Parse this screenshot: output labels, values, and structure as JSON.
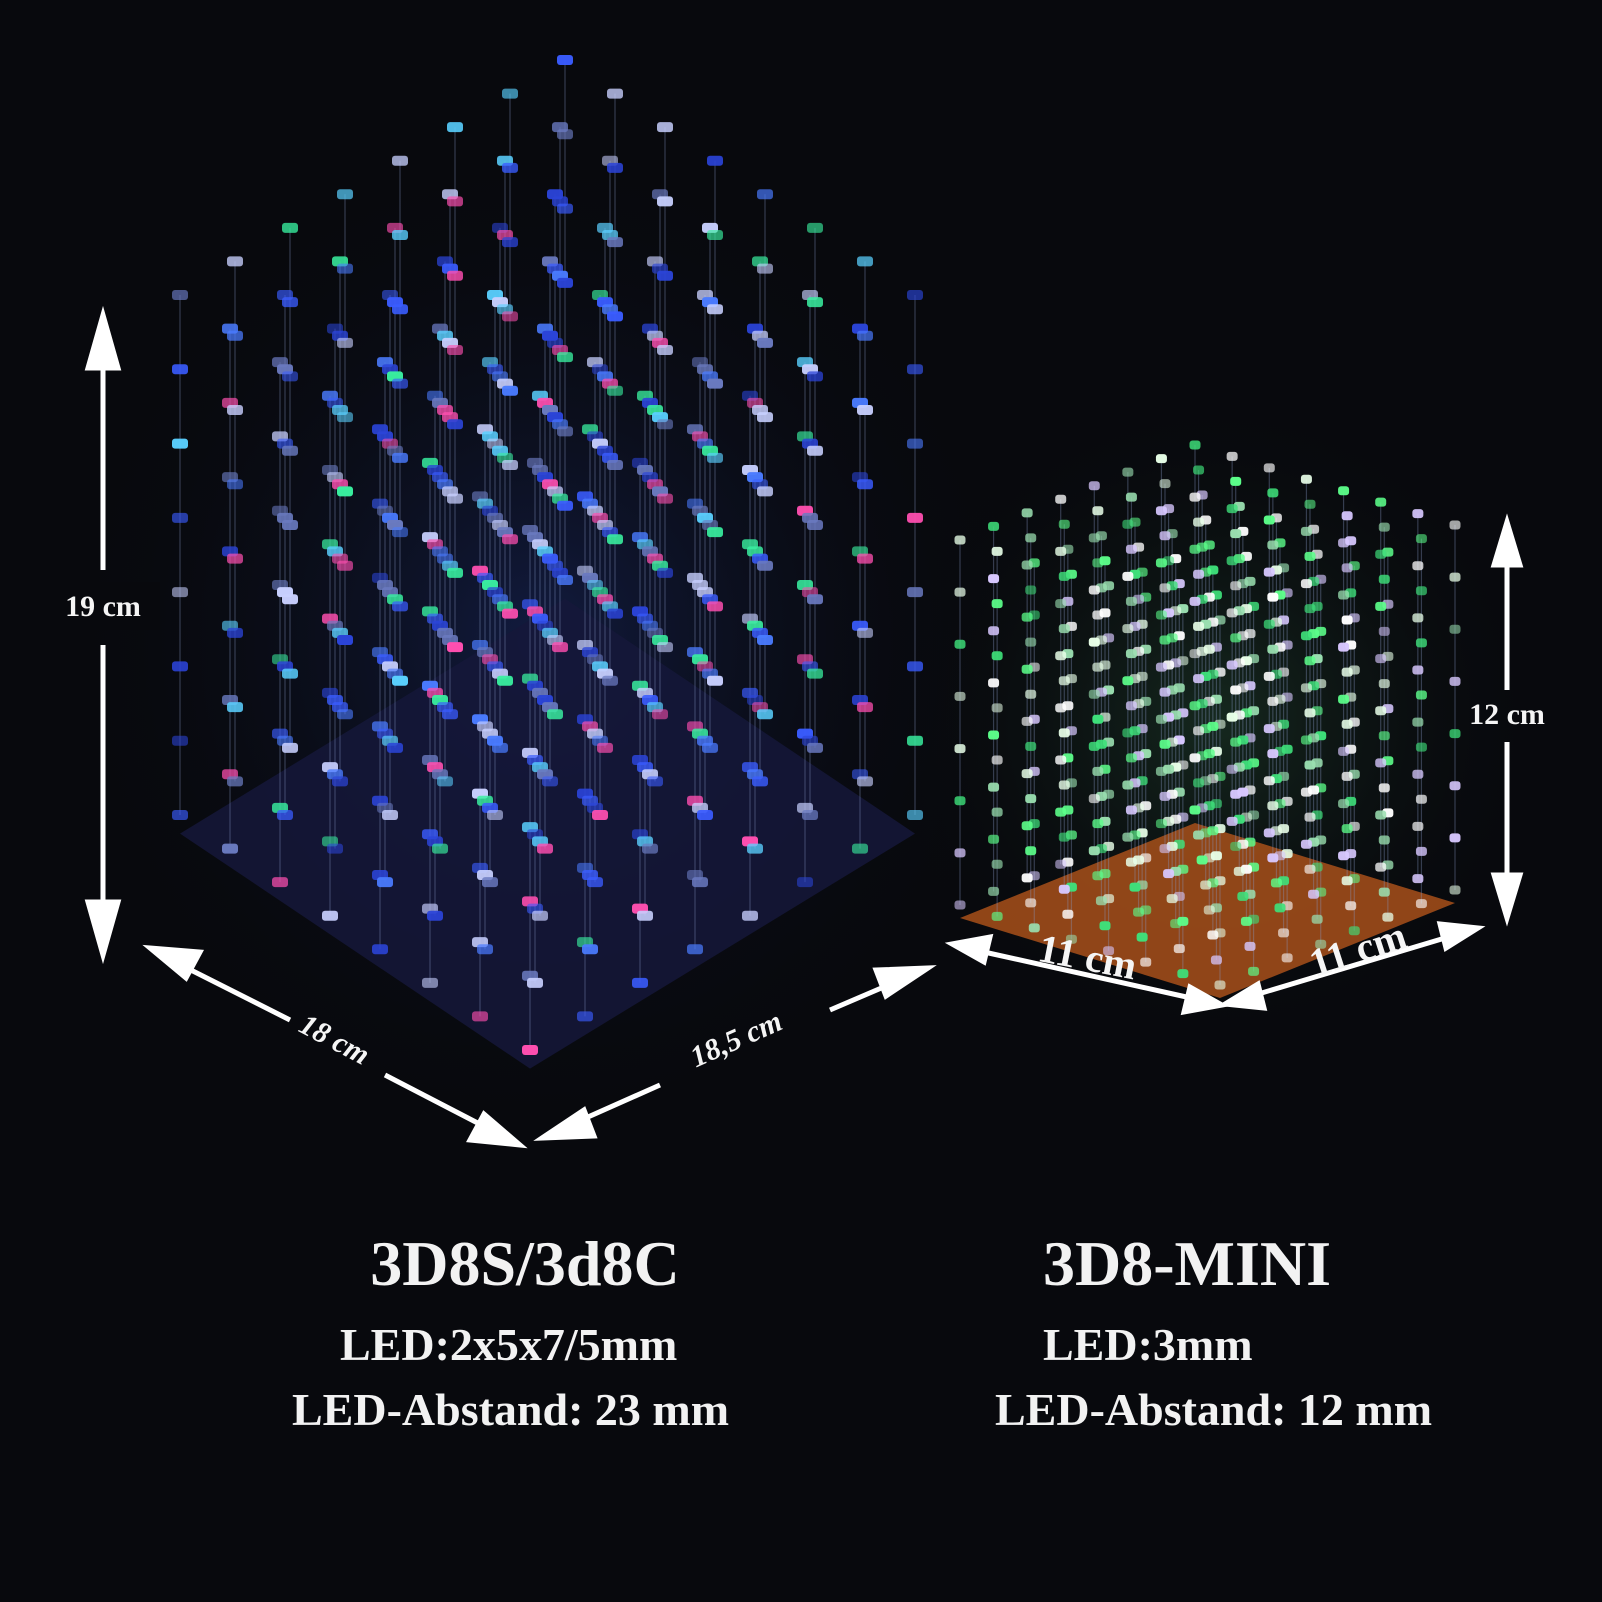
{
  "products": [
    {
      "name": "3D8S/3d8C",
      "led": "LED:2x5x7/5mm",
      "spacing": "LED-Abstand: 23 mm",
      "dimensions": {
        "height": "19 cm",
        "left_width": "18 cm",
        "right_width": "18,5 cm"
      }
    },
    {
      "name": "3D8-MINI",
      "led": "LED:3mm",
      "spacing": "LED-Abstand: 12 mm",
      "dimensions": {
        "height": "12 cm",
        "left_width": "11 cm",
        "right_width": "11 cm"
      }
    }
  ]
}
